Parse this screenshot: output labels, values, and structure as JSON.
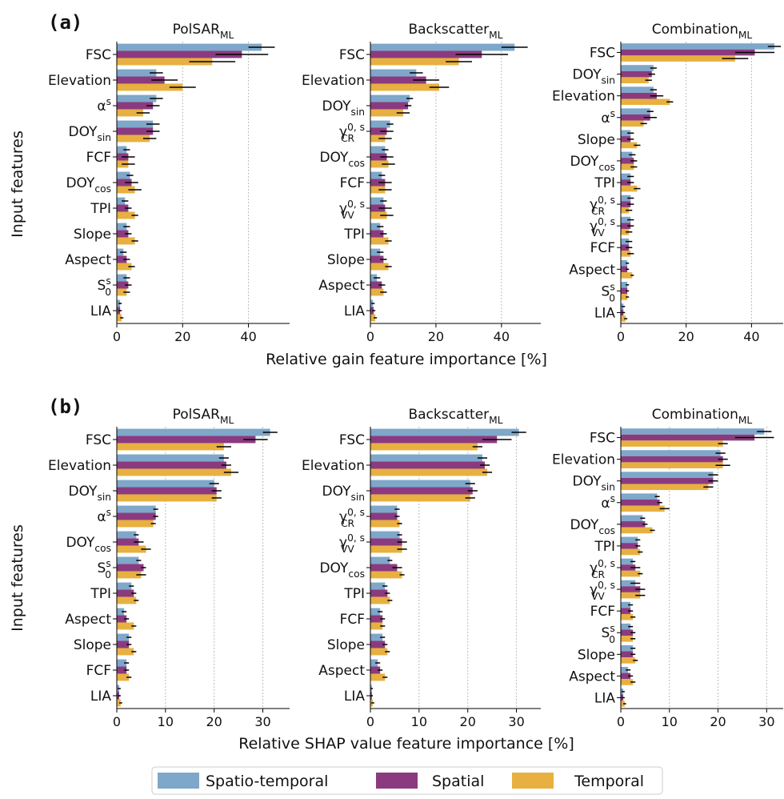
{
  "figure": {
    "panel_labels": [
      "(a)",
      "(b)"
    ],
    "y_labels": [
      "Input features",
      "Input features"
    ],
    "x_labels": [
      "Relative gain feature importance [%]",
      "Relative SHAP value feature importance [%]"
    ]
  },
  "chart_data": [
    {
      "type": "bar",
      "orientation": "horizontal",
      "title": {
        "text": "PolSAR",
        "sub": "ML"
      },
      "categories": [
        "FSC",
        "Elevation",
        {
          "text": "α",
          "sup": "s"
        },
        {
          "text": "DOY",
          "sub": "sin"
        },
        "FCF",
        {
          "text": "DOY",
          "sub": "cos"
        },
        "TPI",
        "Slope",
        "Aspect",
        {
          "text": "S",
          "sup": "s",
          "sub": "0"
        },
        "LIA"
      ],
      "series": [
        {
          "name": "Spatio-temporal",
          "color": "#7ea7c9",
          "values": [
            44,
            12,
            12,
            11,
            3,
            4,
            2.5,
            3,
            2,
            3,
            1
          ],
          "errors": [
            4,
            2,
            2,
            2,
            1,
            1,
            1,
            1,
            1,
            1,
            0.5
          ]
        },
        {
          "name": "Spatial",
          "color": "#8c3a7f",
          "values": [
            38,
            14.5,
            11,
            11,
            3.5,
            4.5,
            3.5,
            3.5,
            3,
            3.5,
            1
          ],
          "errors": [
            8,
            4,
            2,
            2,
            2,
            2,
            1,
            1,
            1,
            1,
            0.5
          ]
        },
        {
          "name": "Temporal",
          "color": "#e7b040",
          "values": [
            29,
            20,
            8,
            10,
            3.5,
            5.5,
            5.5,
            5.5,
            4.5,
            3,
            1.5
          ],
          "errors": [
            7,
            4,
            2,
            2,
            2,
            2,
            1,
            1,
            1,
            1,
            0.5
          ]
        }
      ],
      "xlim": [
        0,
        52.5
      ],
      "xticks": [
        0,
        20,
        40
      ],
      "grid": true
    },
    {
      "type": "bar",
      "orientation": "horizontal",
      "title": {
        "text": "Backscatter",
        "sub": "ML"
      },
      "categories": [
        "FSC",
        "Elevation",
        {
          "text": "DOY",
          "sub": "sin"
        },
        {
          "text": "γ",
          "sup": "0, s",
          "sub": "CR"
        },
        {
          "text": "DOY",
          "sub": "cos"
        },
        "FCF",
        {
          "text": "γ",
          "sup": "0, s",
          "sub": "VV"
        },
        "TPI",
        "Slope",
        "Aspect",
        "LIA"
      ],
      "series": [
        {
          "name": "Spatio-temporal",
          "color": "#7ea7c9",
          "values": [
            44,
            14,
            12,
            6,
            4.5,
            3.5,
            4,
            3,
            3,
            2,
            0.8
          ],
          "errors": [
            4,
            2,
            1,
            1,
            1,
            1,
            1,
            1,
            1,
            1,
            0.5
          ]
        },
        {
          "name": "Spatial",
          "color": "#8c3a7f",
          "values": [
            34,
            17,
            11.5,
            5,
            5,
            4.5,
            4.5,
            4,
            4,
            3.5,
            1
          ],
          "errors": [
            8,
            4,
            1,
            2,
            2,
            2,
            2,
            1,
            1,
            1,
            0.5
          ]
        },
        {
          "name": "Temporal",
          "color": "#e7b040",
          "values": [
            27,
            21,
            10,
            4.5,
            5.5,
            4.5,
            5,
            5.5,
            5.5,
            4,
            1.5
          ],
          "errors": [
            4,
            3,
            2,
            2,
            2,
            2,
            2,
            1,
            1,
            1,
            0.5
          ]
        }
      ],
      "xlim": [
        0,
        52
      ],
      "xticks": [
        0,
        20,
        40
      ],
      "grid": true
    },
    {
      "type": "bar",
      "orientation": "horizontal",
      "title": {
        "text": "Combination",
        "sub": "ML"
      },
      "categories": [
        "FSC",
        {
          "text": "DOY",
          "sub": "sin"
        },
        "Elevation",
        {
          "text": "α",
          "sup": "s"
        },
        "Slope",
        {
          "text": "DOY",
          "sub": "cos"
        },
        "TPI",
        {
          "text": "γ",
          "sup": "0, s",
          "sub": "CR"
        },
        {
          "text": "γ",
          "sup": "0, s",
          "sub": "VV"
        },
        "FCF",
        "Aspect",
        {
          "text": "S",
          "sup": "s",
          "sub": "0"
        },
        "LIA"
      ],
      "series": [
        {
          "name": "Spatio-temporal",
          "color": "#7ea7c9",
          "values": [
            47,
            10,
            10,
            9,
            3,
            3.5,
            3,
            3,
            3,
            2.5,
            2,
            2,
            0.8
          ],
          "errors": [
            2,
            1,
            1,
            1,
            1,
            1,
            1,
            1,
            1,
            1,
            0.5,
            0.5,
            0.5
          ]
        },
        {
          "name": "Spatial",
          "color": "#8c3a7f",
          "values": [
            41,
            9.5,
            11,
            9,
            3,
            4,
            3,
            3,
            3,
            2.5,
            2,
            2,
            0.8
          ],
          "errors": [
            6,
            1,
            2,
            2,
            1,
            1,
            1,
            1,
            1,
            1,
            0.5,
            0.5,
            0.5
          ]
        },
        {
          "name": "Temporal",
          "color": "#e7b040",
          "values": [
            35,
            8.5,
            15,
            7,
            5,
            4,
            5,
            2.5,
            2.5,
            3,
            3.5,
            2,
            1.5
          ],
          "errors": [
            4,
            1,
            1,
            1,
            1,
            1,
            1,
            1,
            1,
            1,
            0.5,
            0.5,
            0.5
          ]
        }
      ],
      "xlim": [
        0,
        49.7
      ],
      "xticks": [
        0,
        20,
        40
      ],
      "grid": true
    },
    {
      "type": "bar",
      "orientation": "horizontal",
      "title": {
        "text": "PolSAR",
        "sub": "ML"
      },
      "categories": [
        "FSC",
        "Elevation",
        {
          "text": "DOY",
          "sub": "sin"
        },
        {
          "text": "α",
          "sup": "s"
        },
        {
          "text": "DOY",
          "sub": "cos"
        },
        {
          "text": "S",
          "sup": "s",
          "sub": "0"
        },
        "TPI",
        "Aspect",
        "Slope",
        "FCF",
        "LIA"
      ],
      "series": [
        {
          "name": "Spatio-temporal",
          "color": "#7ea7c9",
          "values": [
            31.5,
            22,
            20,
            8,
            4,
            4.5,
            3,
            1.5,
            2.5,
            2,
            0.5
          ],
          "errors": [
            1.5,
            1,
            1,
            0.5,
            0.5,
            0.5,
            0.5,
            0.5,
            0.5,
            0.5,
            0.3
          ]
        },
        {
          "name": "Spatial",
          "color": "#8c3a7f",
          "values": [
            28.5,
            22.5,
            20.5,
            8,
            4.5,
            5.5,
            3.5,
            2,
            2.5,
            2,
            0.5
          ],
          "errors": [
            2.5,
            1,
            1,
            0.5,
            1,
            0.5,
            0.5,
            0.5,
            0.5,
            0.5,
            0.3
          ]
        },
        {
          "name": "Temporal",
          "color": "#e7b040",
          "values": [
            22,
            23.5,
            20.5,
            7.5,
            6,
            5,
            4,
            3.5,
            3.5,
            2.5,
            0.8
          ],
          "errors": [
            1.5,
            1.5,
            1,
            0.5,
            1,
            1,
            0.5,
            0.5,
            0.5,
            0.5,
            0.3
          ]
        }
      ],
      "xlim": [
        0,
        35.5
      ],
      "xticks": [
        0,
        10,
        20,
        30
      ],
      "grid": true
    },
    {
      "type": "bar",
      "orientation": "horizontal",
      "title": {
        "text": "Backscatter",
        "sub": "ML"
      },
      "categories": [
        "FSC",
        "Elevation",
        {
          "text": "DOY",
          "sub": "sin"
        },
        {
          "text": "γ",
          "sup": "0, s",
          "sub": "CR"
        },
        {
          "text": "γ",
          "sup": "0, s",
          "sub": "VV"
        },
        {
          "text": "DOY",
          "sub": "cos"
        },
        "TPI",
        "FCF",
        "Slope",
        "Aspect",
        "LIA"
      ],
      "series": [
        {
          "name": "Spatio-temporal",
          "color": "#7ea7c9",
          "values": [
            30.5,
            23,
            20.5,
            5.5,
            6,
            4,
            3,
            2,
            2.5,
            1.5,
            0.3
          ],
          "errors": [
            1.5,
            1,
            1,
            0.5,
            0.5,
            0.5,
            0.5,
            0.5,
            0.5,
            0.5,
            0.2
          ]
        },
        {
          "name": "Spatial",
          "color": "#8c3a7f",
          "values": [
            26,
            23.5,
            21,
            5.5,
            6.5,
            5.5,
            3.5,
            2.5,
            3,
            2,
            0.3
          ],
          "errors": [
            3,
            1,
            1,
            0.5,
            1,
            1,
            0.5,
            0.5,
            0.5,
            0.5,
            0.2
          ]
        },
        {
          "name": "Temporal",
          "color": "#e7b040",
          "values": [
            22,
            24,
            20.5,
            6,
            6.5,
            6.5,
            4,
            2.5,
            3.5,
            3,
            0.5
          ],
          "errors": [
            1,
            1,
            1,
            0.5,
            1,
            0.5,
            0.5,
            0.5,
            0.5,
            0.5,
            0.3
          ]
        }
      ],
      "xlim": [
        0,
        35
      ],
      "xticks": [
        0,
        10,
        20,
        30
      ],
      "grid": true
    },
    {
      "type": "bar",
      "orientation": "horizontal",
      "title": {
        "text": "Combination",
        "sub": "ML"
      },
      "categories": [
        "FSC",
        "Elevation",
        {
          "text": "DOY",
          "sub": "sin"
        },
        {
          "text": "α",
          "sup": "s"
        },
        {
          "text": "DOY",
          "sub": "cos"
        },
        "TPI",
        {
          "text": "γ",
          "sup": "0, s",
          "sub": "CR"
        },
        {
          "text": "γ",
          "sup": "0, s",
          "sub": "VV"
        },
        "FCF",
        {
          "text": "S",
          "sup": "s",
          "sub": "0"
        },
        "Slope",
        "Aspect",
        "LIA"
      ],
      "series": [
        {
          "name": "Spatio-temporal",
          "color": "#7ea7c9",
          "values": [
            29.5,
            20.5,
            19,
            7.5,
            4.5,
            3.5,
            2.5,
            3,
            2,
            2,
            2.5,
            1.5,
            0.5
          ],
          "errors": [
            1.5,
            1,
            1,
            0.5,
            0.5,
            0.5,
            0.5,
            1,
            0.5,
            0.5,
            0.5,
            0.5,
            0.3
          ]
        },
        {
          "name": "Spatial",
          "color": "#8c3a7f",
          "values": [
            27.5,
            21,
            19,
            8,
            5,
            3.5,
            3,
            4,
            2,
            2.5,
            2.5,
            2,
            0.5
          ],
          "errors": [
            4,
            1,
            1,
            0.5,
            0.5,
            0.5,
            1,
            1,
            0.5,
            0.5,
            0.5,
            0.5,
            0.3
          ]
        },
        {
          "name": "Temporal",
          "color": "#e7b040",
          "values": [
            21,
            21,
            18,
            9,
            6.5,
            4,
            4,
            4,
            2.5,
            2.5,
            3,
            2.5,
            0.8
          ],
          "errors": [
            1,
            1.5,
            1,
            1,
            0.5,
            0.5,
            0.5,
            1,
            0.5,
            0.5,
            0.5,
            0.5,
            0.3
          ]
        }
      ],
      "xlim": [
        0,
        33.4
      ],
      "xticks": [
        0,
        10,
        20,
        30
      ],
      "grid": true
    }
  ]
}
